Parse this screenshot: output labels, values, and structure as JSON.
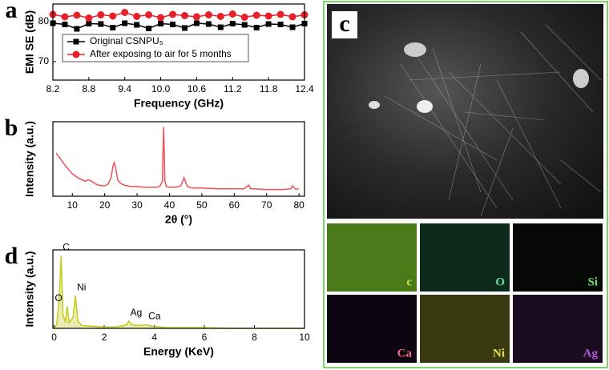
{
  "chart_data": [
    {
      "type": "line",
      "panel_label": "a",
      "x_label": "Frequency (GHz)",
      "y_label": "EMI SE (dB)",
      "x": [
        8.2,
        8.4,
        8.6,
        8.8,
        9.0,
        9.2,
        9.4,
        9.6,
        9.8,
        10.0,
        10.2,
        10.4,
        10.6,
        10.8,
        11.0,
        11.2,
        11.4,
        11.6,
        11.8,
        12.0,
        12.2,
        12.4
      ],
      "series": [
        {
          "name": "Original CSNPU₅",
          "color": "#000000",
          "marker": "square",
          "values": [
            79.6,
            79.3,
            78.2,
            79.5,
            79.4,
            78.5,
            79.6,
            79.2,
            78.3,
            79.5,
            79.3,
            78.4,
            79.6,
            79.4,
            78.6,
            79.5,
            79.2,
            78.5,
            79.4,
            79.3,
            78.6,
            79.5
          ]
        },
        {
          "name": "After exposing to air for 5 months",
          "color": "#e8202a",
          "marker": "circle",
          "values": [
            81.8,
            81.2,
            81.6,
            80.9,
            81.7,
            81.4,
            82.3,
            81.3,
            81.7,
            81.0,
            81.8,
            81.5,
            81.2,
            81.7,
            81.3,
            81.9,
            81.1,
            81.6,
            81.4,
            81.8,
            81.2,
            81.7
          ]
        }
      ],
      "xlim": [
        8.2,
        12.4
      ],
      "ylim": [
        65.4,
        84.4
      ],
      "xticks": [
        8.2,
        8.8,
        9.4,
        {
          "value": 10,
          "label": "10.0"
        },
        10.6,
        11.2,
        11.8,
        12.4
      ],
      "yticks": [
        70,
        80
      ],
      "legend": "upper left"
    },
    {
      "type": "line",
      "panel_label": "b",
      "x_label": "2θ (°)",
      "y_label": "Intensity (a.u.)",
      "x": [
        5,
        6,
        7,
        8,
        9,
        10,
        12,
        14,
        15,
        16,
        17,
        18,
        20,
        21,
        22,
        22.5,
        23,
        23.5,
        24,
        25,
        26,
        28,
        30,
        32,
        34,
        36,
        37,
        37.8,
        38.2,
        38.6,
        39,
        40,
        42,
        43.5,
        44.5,
        45.5,
        47,
        50,
        55,
        60,
        63,
        64.5,
        65,
        66,
        70,
        75,
        77.5,
        78,
        79,
        80
      ],
      "series": [
        {
          "color": "#f0505a",
          "marker": "none",
          "values": [
            58,
            52,
            46,
            40,
            35,
            30,
            24,
            20,
            22,
            20,
            17,
            15,
            14,
            16,
            25,
            40,
            45,
            35,
            22,
            17,
            15,
            13,
            13,
            12,
            12,
            12,
            13,
            20,
            93,
            20,
            13,
            12,
            12,
            14,
            25,
            13,
            11,
            11,
            10,
            10,
            10,
            15,
            10,
            10,
            9,
            9,
            10,
            14,
            9,
            10
          ]
        }
      ],
      "xlim": [
        4,
        81.7
      ],
      "ylim": [
        0,
        100
      ],
      "xticks": [
        10,
        20,
        30,
        40,
        50,
        60,
        70,
        80
      ]
    },
    {
      "type": "line",
      "panel_label": "d",
      "x_label": "Energy (KeV)",
      "y_label": "Intensity (a.u.)",
      "x": [
        0,
        0.1,
        0.2,
        0.28,
        0.35,
        0.45,
        0.52,
        0.6,
        0.75,
        0.85,
        0.95,
        1.1,
        1.5,
        2,
        2.5,
        2.9,
        2.98,
        3.1,
        3.4,
        3.7,
        3.9,
        4.5,
        5,
        6,
        7,
        8,
        9,
        10
      ],
      "series": [
        {
          "color": "#c3cc1a",
          "marker": "none",
          "values": [
            0,
            5,
            40,
            100,
            20,
            8,
            30,
            8,
            15,
            45,
            10,
            4,
            3,
            2,
            2,
            5,
            10,
            5,
            4,
            5,
            3,
            1,
            1,
            1,
            0,
            0,
            0,
            0
          ]
        }
      ],
      "xlim": [
        -0.05,
        10
      ],
      "ylim": [
        0,
        108
      ],
      "xticks": [
        0,
        2,
        4,
        6,
        8,
        10
      ],
      "annotations": [
        {
          "text": "C",
          "x": 0.28,
          "y": 100
        },
        {
          "text": "O",
          "x": 0.52,
          "y": 30
        },
        {
          "text": "Ni",
          "x": 0.85,
          "y": 45
        },
        {
          "text": "Ag",
          "x": 2.98,
          "y": 10
        },
        {
          "text": "Ca",
          "x": 3.7,
          "y": 5
        }
      ]
    }
  ],
  "image_panel": {
    "panel_label": "c",
    "maps": [
      "c",
      "O",
      "Si",
      "Ca",
      "Ni",
      "Ag"
    ]
  }
}
